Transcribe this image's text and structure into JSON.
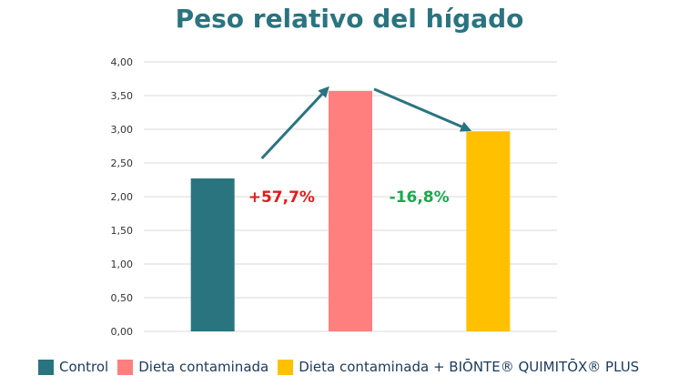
{
  "chart_data": {
    "type": "bar",
    "title": "Peso relativo del hígado",
    "categories": [
      "Control",
      "Dieta contaminada",
      "Dieta contaminada + BIŌNTE® QUIMITŌX® PLUS"
    ],
    "values": [
      2.27,
      3.57,
      2.97
    ],
    "colors": [
      "#2a7480",
      "#ff7f7e",
      "#ffc000"
    ],
    "ylim": [
      0,
      4
    ],
    "yticks": [
      "0,00",
      "0,50",
      "1,00",
      "1,50",
      "2,00",
      "2,50",
      "3,00",
      "3,50",
      "4,00"
    ],
    "grid": true,
    "legend_position": "bottom",
    "annotations": [
      {
        "text": "+57,7%",
        "color": "#e31b1b"
      },
      {
        "text": "-16,8%",
        "color": "#1aa84e"
      }
    ]
  }
}
